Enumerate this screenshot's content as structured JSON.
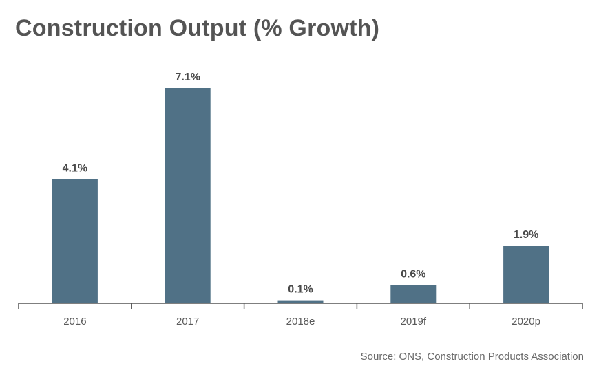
{
  "chart_data": {
    "type": "bar",
    "title": "Construction Output (% Growth)",
    "categories": [
      "2016",
      "2017",
      "2018e",
      "2019f",
      "2020p"
    ],
    "values": [
      4.1,
      7.1,
      0.1,
      0.6,
      1.9
    ],
    "data_labels": [
      "4.1%",
      "7.1%",
      "0.1%",
      "0.6%",
      "1.9%"
    ],
    "xlabel": "",
    "ylabel": "",
    "ylim": [
      0,
      7.1
    ],
    "grid": false,
    "legend": "none",
    "bar_color": "#507186",
    "axis_color": "#555555",
    "source": "Source: ONS, Construction Products Association"
  }
}
